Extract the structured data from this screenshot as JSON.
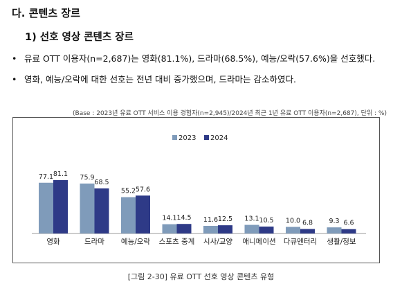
{
  "header": {
    "section_title": "다. 콘텐츠 장르",
    "subsection_title": "1) 선호 영상 콘텐츠 장르"
  },
  "bullets": [
    "유료 OTT 이용자(n=2,687)는 영화(81.1%), 드라마(68.5%), 예능/오락(57.6%)을 선호했다.",
    "영화, 예능/오락에 대한 선호는 전년 대비 증가했으며, 드라마는 감소하였다."
  ],
  "bullet_marker": "•",
  "base_note": "(Base : 2023년 유료 OTT 서비스 이용 경험자(n=2,945)/2024년 최근 1년 유료 OTT 이용자(n=2,687), 단위 : %)",
  "caption": "[그림 2-30]   유료 OTT 선호 영상 콘텐츠 유형",
  "chart_data": {
    "type": "bar",
    "categories": [
      "영화",
      "드라마",
      "예능/오락",
      "스포츠 중계",
      "시사/교양",
      "애니메이션",
      "다큐멘터리",
      "생활/정보"
    ],
    "series": [
      {
        "name": "2023",
        "color": "#7f9bba",
        "values": [
          77.1,
          75.9,
          55.2,
          14.1,
          11.6,
          13.1,
          10.0,
          9.3
        ]
      },
      {
        "name": "2024",
        "color": "#2e3a87",
        "values": [
          81.1,
          68.5,
          57.6,
          14.5,
          12.5,
          10.5,
          6.8,
          6.6
        ]
      }
    ],
    "value_labels": [
      [
        "77.1",
        "81.1"
      ],
      [
        "75.9",
        "68.5"
      ],
      [
        "55.2",
        "57.6"
      ],
      [
        "14.1",
        "14.5"
      ],
      [
        "11.6",
        "12.5"
      ],
      [
        "13.1",
        "10.5"
      ],
      [
        "10.0",
        "6.8"
      ],
      [
        "9.3",
        "6.6"
      ]
    ],
    "ylim": [
      0,
      100
    ],
    "legend_position": "top-center",
    "grid": false
  }
}
